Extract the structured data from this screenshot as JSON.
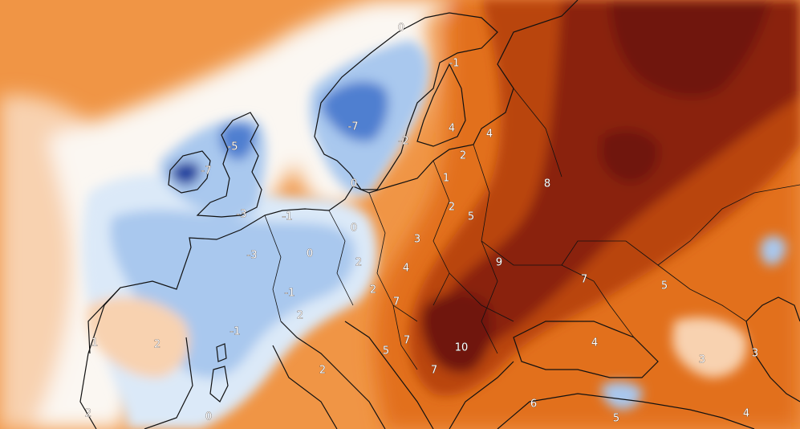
{
  "map": {
    "palette": {
      "deep_blue": "#1f3f9e",
      "blue": "#4f7fd0",
      "light_blue": "#a9c8ee",
      "pale_blue": "#dbe9f8",
      "white": "#fbf7f2",
      "pale_orange": "#f8d2b0",
      "light_orange": "#f6b784",
      "orange": "#f09545",
      "dark_orange": "#e2701f",
      "red_brown": "#b94410",
      "dark_red": "#8a200b",
      "deep_maroon": "#701409",
      "coast": "#111111"
    },
    "labels": [
      {
        "text": "0",
        "region": "northern-norway"
      },
      {
        "text": "-1",
        "region": "lapland"
      },
      {
        "text": "-7",
        "region": "central-sweden"
      },
      {
        "text": "-2",
        "region": "southern-sweden"
      },
      {
        "text": "4",
        "region": "finland"
      },
      {
        "text": "4",
        "region": "karelia"
      },
      {
        "text": "2",
        "region": "latvia"
      },
      {
        "text": "1",
        "region": "lithuania"
      },
      {
        "text": "0",
        "region": "denmark"
      },
      {
        "text": "-5",
        "region": "scotland"
      },
      {
        "text": "-7",
        "region": "ireland"
      },
      {
        "text": "-3",
        "region": "england"
      },
      {
        "text": "-1",
        "region": "north-sea-coast"
      },
      {
        "text": "0",
        "region": "northern-germany"
      },
      {
        "text": "2",
        "region": "eastern-poland"
      },
      {
        "text": "5",
        "region": "belarus"
      },
      {
        "text": "8",
        "region": "western-russia"
      },
      {
        "text": "3",
        "region": "poland"
      },
      {
        "text": "-3",
        "region": "france"
      },
      {
        "text": "0",
        "region": "eastern-france"
      },
      {
        "text": "2",
        "region": "southern-germany"
      },
      {
        "text": "4",
        "region": "czechia"
      },
      {
        "text": "9",
        "region": "ukraine"
      },
      {
        "text": "7",
        "region": "eastern-ukraine"
      },
      {
        "text": "5",
        "region": "southern-russia"
      },
      {
        "text": "2",
        "region": "austria"
      },
      {
        "text": "7",
        "region": "hungary"
      },
      {
        "text": "-1",
        "region": "switzerland"
      },
      {
        "text": "2",
        "region": "northern-italy"
      },
      {
        "text": "-1",
        "region": "southern-france"
      },
      {
        "text": "2",
        "region": "northern-spain"
      },
      {
        "text": "1",
        "region": "portugal"
      },
      {
        "text": "2",
        "region": "central-italy"
      },
      {
        "text": "5",
        "region": "croatia"
      },
      {
        "text": "7",
        "region": "serbia"
      },
      {
        "text": "10",
        "region": "romania"
      },
      {
        "text": "7",
        "region": "bulgaria"
      },
      {
        "text": "4",
        "region": "black-sea"
      },
      {
        "text": "6",
        "region": "western-turkey"
      },
      {
        "text": "3",
        "region": "caucasus"
      },
      {
        "text": "3",
        "region": "caspian"
      },
      {
        "text": "5",
        "region": "central-turkey"
      },
      {
        "text": "4",
        "region": "eastern-turkey"
      },
      {
        "text": "2",
        "region": "southern-spain"
      },
      {
        "text": "0",
        "region": "sardinia"
      }
    ]
  }
}
